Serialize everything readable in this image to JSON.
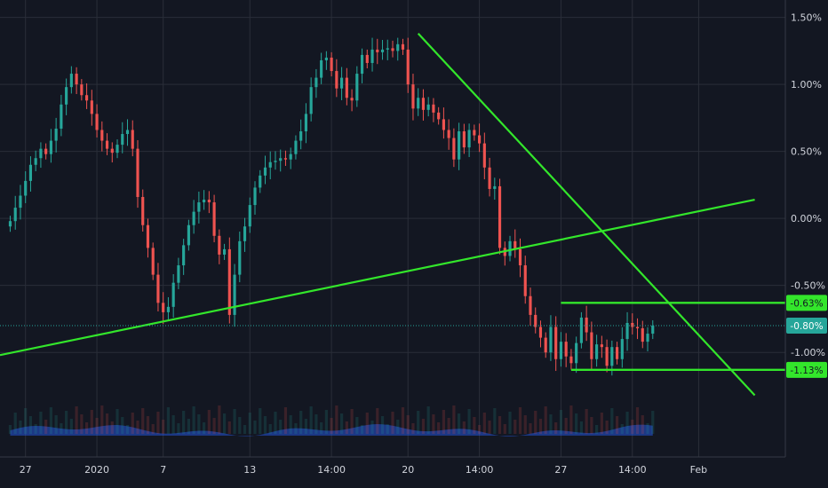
{
  "colors": {
    "background": "#131722",
    "grid": "#2a2e39",
    "up": "#26a69a",
    "down": "#ef5350",
    "trendline": "#33e62b",
    "volume_area": "#2962ff",
    "axis_text": "#d1d4dc",
    "current_flag": "#26a69a"
  },
  "chart_data": {
    "type": "candlestick",
    "title": "",
    "xlabel": "",
    "ylabel": "",
    "y_unit": "%",
    "ylim": [
      -1.78,
      1.63
    ],
    "grid": true,
    "y_ticks": [
      "1.50%",
      "1.00%",
      "0.50%",
      "0.00%",
      "-0.50%",
      "-1.00%"
    ],
    "x_ticks": [
      "27",
      "2020",
      "7",
      "13",
      "14:00",
      "20",
      "14:00",
      "27",
      "14:00",
      "Feb"
    ],
    "x_tick_positions": [
      3,
      17,
      30,
      47,
      63,
      78,
      92,
      108,
      122,
      135
    ],
    "x_range": [
      -2,
      152
    ],
    "price_flags": [
      {
        "label": "-0.63%",
        "value": -0.63,
        "kind": "level"
      },
      {
        "label": "-0.80%",
        "value": -0.8,
        "kind": "current"
      },
      {
        "label": "-1.13%",
        "value": -1.13,
        "kind": "level"
      }
    ],
    "trendlines": [
      {
        "x": [
          -2,
          146
        ],
        "y": [
          -1.02,
          0.14
        ]
      },
      {
        "x": [
          80,
          146
        ],
        "y": [
          1.38,
          -1.32
        ]
      }
    ],
    "horizontal_levels": [
      {
        "value": -0.63,
        "x_start": 108,
        "x_end": 146
      },
      {
        "value": -1.13,
        "x_start": 110,
        "x_end": 146
      }
    ],
    "close": [
      -0.02,
      0.08,
      0.17,
      0.28,
      0.4,
      0.45,
      0.52,
      0.48,
      0.58,
      0.67,
      0.85,
      0.98,
      1.08,
      1.0,
      0.92,
      0.88,
      0.78,
      0.66,
      0.58,
      0.52,
      0.49,
      0.55,
      0.63,
      0.66,
      0.52,
      0.16,
      -0.05,
      -0.22,
      -0.42,
      -0.63,
      -0.7,
      -0.66,
      -0.48,
      -0.35,
      -0.2,
      -0.05,
      0.05,
      0.12,
      0.14,
      0.12,
      -0.13,
      -0.27,
      -0.23,
      -0.72,
      -0.42,
      -0.17,
      -0.06,
      0.1,
      0.23,
      0.32,
      0.38,
      0.42,
      0.43,
      0.45,
      0.44,
      0.48,
      0.58,
      0.65,
      0.78,
      0.98,
      1.05,
      1.18,
      1.2,
      1.1,
      0.97,
      1.05,
      0.9,
      0.88,
      1.08,
      1.22,
      1.16,
      1.26,
      1.24,
      1.26,
      1.27,
      1.25,
      1.3,
      1.26,
      1.0,
      0.82,
      0.9,
      0.81,
      0.85,
      0.79,
      0.74,
      0.66,
      0.6,
      0.44,
      0.65,
      0.53,
      0.66,
      0.62,
      0.56,
      0.38,
      0.22,
      0.24,
      -0.22,
      -0.28,
      -0.17,
      -0.23,
      -0.35,
      -0.58,
      -0.72,
      -0.81,
      -0.89,
      -1.0,
      -0.81,
      -1.05,
      -0.92,
      -1.03,
      -1.08,
      -0.93,
      -0.74,
      -0.85,
      -1.05,
      -0.94,
      -0.96,
      -1.1,
      -0.96,
      -1.05,
      -0.9,
      -0.78,
      -0.81,
      -0.82,
      -0.92,
      -0.86,
      -0.8
    ],
    "volume_fill": 0.12
  }
}
